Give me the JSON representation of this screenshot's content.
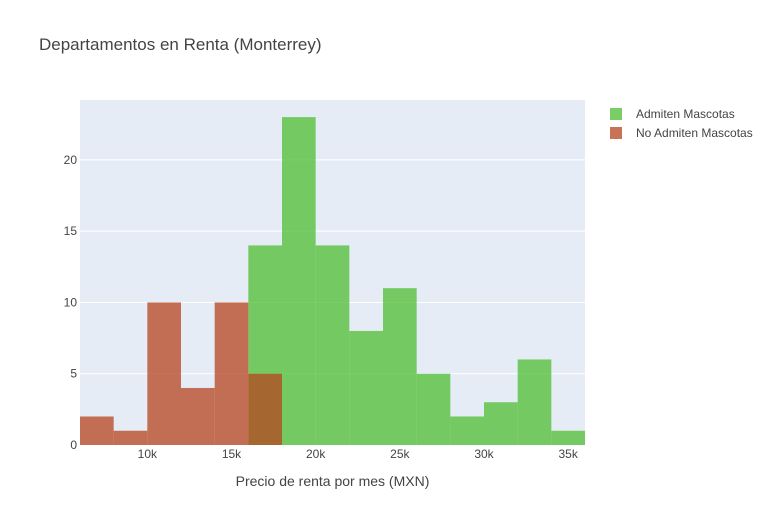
{
  "chart_data": {
    "type": "bar",
    "mode": "overlay",
    "title": "Departamentos en Renta (Monterrey)",
    "xlabel": "Precio de renta por mes (MXN)",
    "ylabel": "",
    "xlim": [
      6000,
      36000
    ],
    "ylim": [
      0,
      24.2
    ],
    "x_ticks": [
      10000,
      15000,
      20000,
      25000,
      30000,
      35000
    ],
    "x_tick_labels": [
      "10k",
      "15k",
      "20k",
      "25k",
      "30k",
      "35k"
    ],
    "y_ticks": [
      0,
      5,
      10,
      15,
      20
    ],
    "y_tick_labels": [
      "0",
      "5",
      "10",
      "15",
      "20"
    ],
    "grid": true,
    "legend_position": "top-right",
    "series": [
      {
        "name": "Admiten Mascotas",
        "color": "#4dbe32",
        "bin_edges": [
          16000,
          18000,
          20000,
          22000,
          24000,
          26000,
          28000,
          30000,
          32000,
          34000,
          36000
        ],
        "values": [
          14,
          23,
          14,
          8,
          11,
          5,
          2,
          3,
          6,
          1
        ]
      },
      {
        "name": "No Admiten Mascotas",
        "color": "#b5441f",
        "bin_edges": [
          6000,
          8000,
          10000,
          12000,
          14000,
          16000,
          18000
        ],
        "values": [
          2,
          1,
          10,
          4,
          10,
          5
        ]
      }
    ]
  }
}
